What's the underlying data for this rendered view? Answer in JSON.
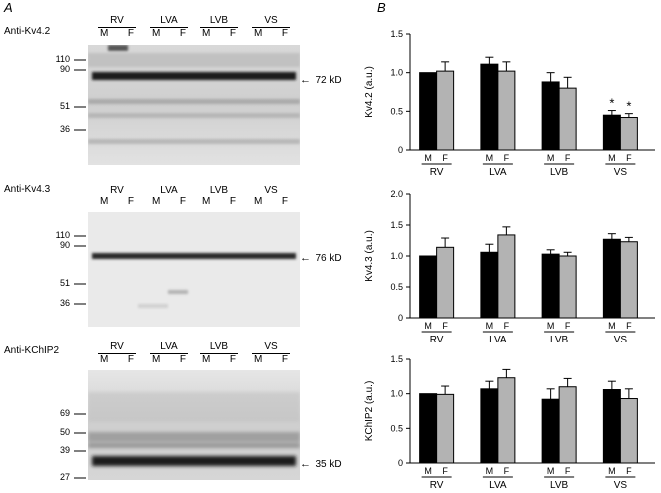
{
  "panels": {
    "a": "A",
    "b": "B"
  },
  "lane_groups": [
    "RV",
    "LVA",
    "LVB",
    "VS"
  ],
  "sex_labels": [
    "M",
    "F"
  ],
  "blots": [
    {
      "title": "Anti-Kv4.2",
      "markers": [
        "110",
        "90",
        "51",
        "36"
      ],
      "band": "72 kD"
    },
    {
      "title": "Anti-Kv4.3",
      "markers": [
        "110",
        "90",
        "51",
        "36"
      ],
      "band": "76 kD"
    },
    {
      "title": "Anti-KChIP2",
      "markers": [
        "69",
        "50",
        "39",
        "27"
      ],
      "band": "35 kD"
    }
  ],
  "colors": {
    "male": "#000000",
    "female": "#b3b3b3"
  },
  "chart_data": [
    {
      "type": "bar",
      "ylabel": "Kv4.2 (a.u.)",
      "ylim": [
        0,
        1.5
      ],
      "yticks": [
        "0",
        "0.5",
        "1.0",
        "1.5"
      ],
      "categories": [
        "RV",
        "LVA",
        "LVB",
        "VS"
      ],
      "series": [
        {
          "name": "M",
          "values": [
            1.0,
            1.11,
            0.88,
            0.45
          ],
          "errors": [
            0.0,
            0.09,
            0.12,
            0.06
          ]
        },
        {
          "name": "F",
          "values": [
            1.02,
            1.02,
            0.8,
            0.42
          ],
          "errors": [
            0.12,
            0.12,
            0.14,
            0.05
          ]
        }
      ],
      "annotations": [
        {
          "category": "VS",
          "series": "M",
          "text": "*"
        },
        {
          "category": "VS",
          "series": "F",
          "text": "*"
        }
      ]
    },
    {
      "type": "bar",
      "ylabel": "Kv4.3 (a.u.)",
      "ylim": [
        0,
        2.0
      ],
      "yticks": [
        "0",
        "0.5",
        "1.0",
        "1.5",
        "2.0"
      ],
      "categories": [
        "RV",
        "LVA",
        "LVB",
        "VS"
      ],
      "series": [
        {
          "name": "M",
          "values": [
            1.0,
            1.06,
            1.03,
            1.27
          ],
          "errors": [
            0.0,
            0.13,
            0.07,
            0.09
          ]
        },
        {
          "name": "F",
          "values": [
            1.14,
            1.34,
            1.0,
            1.23
          ],
          "errors": [
            0.15,
            0.13,
            0.06,
            0.07
          ]
        }
      ],
      "annotations": []
    },
    {
      "type": "bar",
      "ylabel": "KChIP2 (a.u.)",
      "ylim": [
        0,
        1.5
      ],
      "yticks": [
        "0",
        "0.5",
        "1.0",
        "1.5"
      ],
      "categories": [
        "RV",
        "LVA",
        "LVB",
        "VS"
      ],
      "series": [
        {
          "name": "M",
          "values": [
            1.0,
            1.07,
            0.92,
            1.06
          ],
          "errors": [
            0.0,
            0.11,
            0.15,
            0.12
          ]
        },
        {
          "name": "F",
          "values": [
            0.99,
            1.23,
            1.1,
            0.93
          ],
          "errors": [
            0.12,
            0.12,
            0.12,
            0.14
          ]
        }
      ],
      "annotations": []
    }
  ]
}
